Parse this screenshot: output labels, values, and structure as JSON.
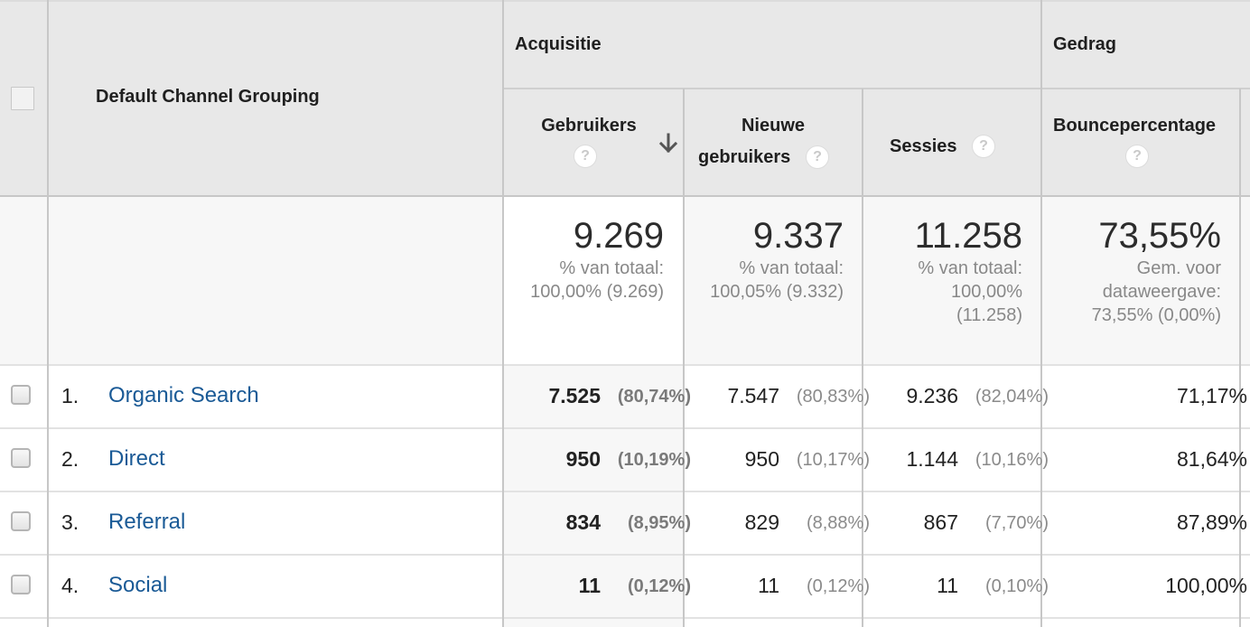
{
  "header": {
    "dimension_label": "Default Channel Grouping",
    "group_acquisition": "Acquisitie",
    "group_behavior": "Gedrag",
    "col_users": "Gebruikers",
    "col_new_users_line1": "Nieuwe",
    "col_new_users_line2": "gebruikers",
    "col_sessions": "Sessies",
    "col_bounce": "Bouncepercentage",
    "help_glyph": "?",
    "sorted_column": "Gebruikers",
    "sort_direction": "descending"
  },
  "totals": {
    "users": {
      "value": "9.269",
      "line1": "% van totaal:",
      "line2": "100,00% (9.269)"
    },
    "new_users": {
      "value": "9.337",
      "line1": "% van totaal:",
      "line2": "100,05% (9.332)"
    },
    "sessions": {
      "value": "11.258",
      "line1": "% van totaal:",
      "line2": "100,00%",
      "line3": "(11.258)"
    },
    "bounce": {
      "value": "73,55%",
      "line1": "Gem. voor",
      "line2": "dataweergave:",
      "line3": "73,55% (0,00%)"
    }
  },
  "rows": [
    {
      "num": "1.",
      "channel": "Organic Search",
      "users": "7.525",
      "users_pct": "(80,74%)",
      "new_users": "7.547",
      "new_users_pct": "(80,83%)",
      "sessions": "9.236",
      "sessions_pct": "(82,04%)",
      "bounce": "71,17%"
    },
    {
      "num": "2.",
      "channel": "Direct",
      "users": "950",
      "users_pct": "(10,19%)",
      "new_users": "950",
      "new_users_pct": "(10,17%)",
      "sessions": "1.144",
      "sessions_pct": "(10,16%)",
      "bounce": "81,64%"
    },
    {
      "num": "3.",
      "channel": "Referral",
      "users": "834",
      "users_pct": "(8,95%)",
      "new_users": "829",
      "new_users_pct": "(8,88%)",
      "sessions": "867",
      "sessions_pct": "(7,70%)",
      "bounce": "87,89%"
    },
    {
      "num": "4.",
      "channel": "Social",
      "users": "11",
      "users_pct": "(0,12%)",
      "new_users": "11",
      "new_users_pct": "(0,12%)",
      "sessions": "11",
      "sessions_pct": "(0,10%)",
      "bounce": "100,00%"
    }
  ],
  "colors": {
    "header_bg": "#e8e8e8",
    "link": "#1a5a96",
    "border": "#c7c7c7",
    "sorted_col_bg": "#f7f7f7"
  }
}
